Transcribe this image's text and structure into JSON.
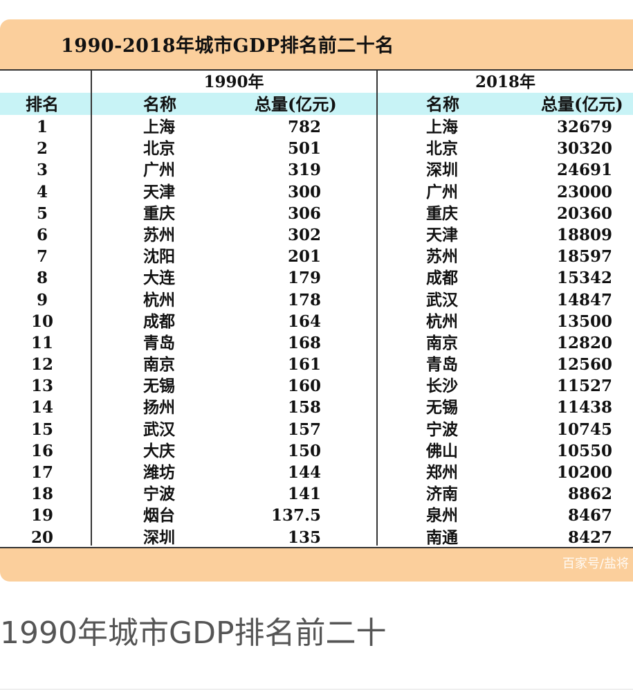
{
  "table": {
    "title": "1990-2018年城市GDP排名前二十名",
    "year_left": "1990年",
    "year_right": "2018年",
    "headers": {
      "rank": "排名",
      "name_left": "名称",
      "total_left": "总量(亿元)",
      "name_right": "名称",
      "total_right": "总量(亿元)"
    },
    "rows": [
      {
        "rank": "1",
        "city_1990": "上海",
        "gdp_1990": "782",
        "city_2018": "上海",
        "gdp_2018": "32679"
      },
      {
        "rank": "2",
        "city_1990": "北京",
        "gdp_1990": "501",
        "city_2018": "北京",
        "gdp_2018": "30320"
      },
      {
        "rank": "3",
        "city_1990": "广州",
        "gdp_1990": "319",
        "city_2018": "深圳",
        "gdp_2018": "24691"
      },
      {
        "rank": "4",
        "city_1990": "天津",
        "gdp_1990": "300",
        "city_2018": "广州",
        "gdp_2018": "23000"
      },
      {
        "rank": "5",
        "city_1990": "重庆",
        "gdp_1990": "306",
        "city_2018": "重庆",
        "gdp_2018": "20360"
      },
      {
        "rank": "6",
        "city_1990": "苏州",
        "gdp_1990": "302",
        "city_2018": "天津",
        "gdp_2018": "18809"
      },
      {
        "rank": "7",
        "city_1990": "沈阳",
        "gdp_1990": "201",
        "city_2018": "苏州",
        "gdp_2018": "18597"
      },
      {
        "rank": "8",
        "city_1990": "大连",
        "gdp_1990": "179",
        "city_2018": "成都",
        "gdp_2018": "15342"
      },
      {
        "rank": "9",
        "city_1990": "杭州",
        "gdp_1990": "178",
        "city_2018": "武汉",
        "gdp_2018": "14847"
      },
      {
        "rank": "10",
        "city_1990": "成都",
        "gdp_1990": "164",
        "city_2018": "杭州",
        "gdp_2018": "13500"
      },
      {
        "rank": "11",
        "city_1990": "青岛",
        "gdp_1990": "168",
        "city_2018": "南京",
        "gdp_2018": "12820"
      },
      {
        "rank": "12",
        "city_1990": "南京",
        "gdp_1990": "161",
        "city_2018": "青岛",
        "gdp_2018": "12560"
      },
      {
        "rank": "13",
        "city_1990": "无锡",
        "gdp_1990": "160",
        "city_2018": "长沙",
        "gdp_2018": "11527"
      },
      {
        "rank": "14",
        "city_1990": "扬州",
        "gdp_1990": "158",
        "city_2018": "无锡",
        "gdp_2018": "11438"
      },
      {
        "rank": "15",
        "city_1990": "武汉",
        "gdp_1990": "157",
        "city_2018": "宁波",
        "gdp_2018": "10745"
      },
      {
        "rank": "16",
        "city_1990": "大庆",
        "gdp_1990": "150",
        "city_2018": "佛山",
        "gdp_2018": "10550"
      },
      {
        "rank": "17",
        "city_1990": "潍坊",
        "gdp_1990": "144",
        "city_2018": "郑州",
        "gdp_2018": "10200"
      },
      {
        "rank": "18",
        "city_1990": "宁波",
        "gdp_1990": "141",
        "city_2018": "济南",
        "gdp_2018": "8862"
      },
      {
        "rank": "19",
        "city_1990": "烟台",
        "gdp_1990": "137.5",
        "city_2018": "泉州",
        "gdp_2018": "8467"
      },
      {
        "rank": "20",
        "city_1990": "深圳",
        "gdp_1990": "135",
        "city_2018": "南通",
        "gdp_2018": "8427"
      }
    ],
    "watermark": "百家号/盐将"
  },
  "caption": "1990年城市GDP排名前二十",
  "colors": {
    "card": "#fbcf9c",
    "header_row": "#c8f3f6"
  }
}
